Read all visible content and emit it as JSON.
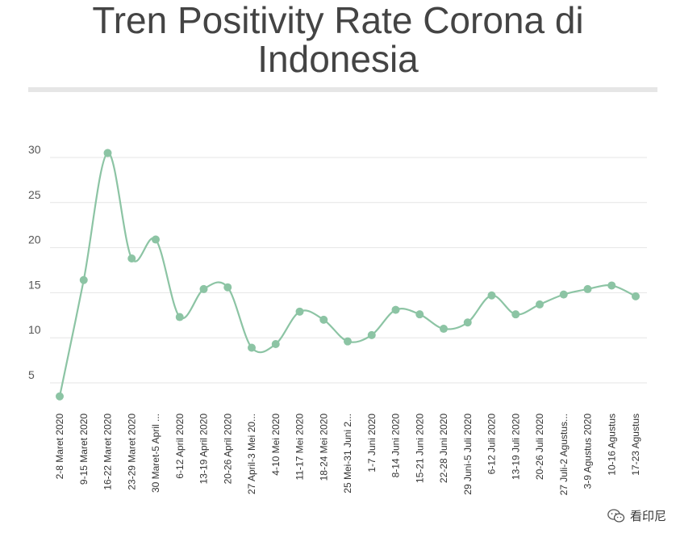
{
  "header": {
    "title_line1": "Tren Positivity Rate Corona di",
    "title_line2": "Indonesia"
  },
  "watermark": {
    "icon": "wechat-icon",
    "text": "看印尼"
  },
  "colors": {
    "series": "#8cc4a4",
    "grid": "#e6e6e6",
    "rule": "#e6e6e6",
    "text": "#444444"
  },
  "chart_data": {
    "type": "line",
    "title": "Tren Positivity Rate Corona di Indonesia",
    "xlabel": "",
    "ylabel": "",
    "ylim": [
      0,
      32
    ],
    "yticks": [
      5,
      10,
      15,
      20,
      25,
      30
    ],
    "grid": true,
    "legend": "none",
    "categories": [
      "2-8 Maret 2020",
      "9-15 Maret 2020",
      "16-22 Maret 2020",
      "23-29 Maret 2020",
      "30 Maret-5 April ...",
      "6-12 April 2020",
      "13-19 April 2020",
      "20-26 April 2020",
      "27 April-3 Mei 20...",
      "4-10 Mei 2020",
      "11-17 Mei 2020",
      "18-24 Mei 2020",
      "25 Mei-31 Juni 2...",
      "1-7 Juni 2020",
      "8-14 Juni 2020",
      "15-21 Juni 2020",
      "22-28 Juni 2020",
      "29 Juni-5 Juli 2020",
      "6-12 Juli 2020",
      "13-19 Juli 2020",
      "20-26 Juli 2020",
      "27 Juli-2 Agustus...",
      "3-9 Agustus 2020",
      "10-16 Agustus",
      "17-23 Agustus"
    ],
    "series": [
      {
        "values": [
          3.5,
          16.4,
          30.5,
          18.8,
          20.9,
          12.3,
          15.4,
          15.6,
          8.9,
          9.3,
          12.9,
          12.0,
          9.6,
          10.3,
          13.1,
          12.6,
          11.0,
          11.7,
          14.7,
          12.6,
          13.7,
          14.8,
          15.4,
          15.8,
          14.6
        ]
      }
    ]
  }
}
